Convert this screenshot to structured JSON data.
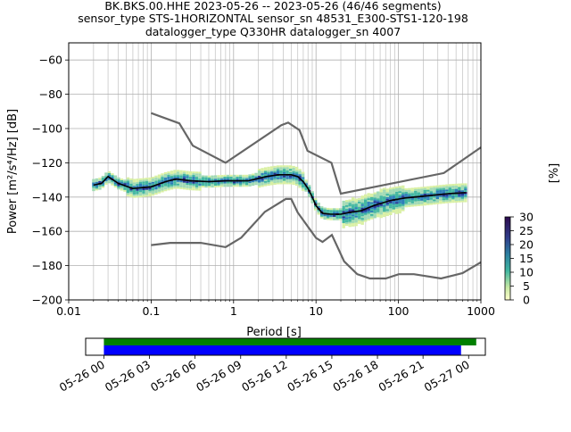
{
  "title": {
    "line1": "BK.BKS.00.HHE   2023-05-26 -- 2023-05-26  (46/46 segments)",
    "line2": "sensor_type STS-1HORIZONTAL sensor_sn 48531_E300-STS1-120-198",
    "line3": "datalogger_type Q330HR datalogger_sn 4007"
  },
  "colors": {
    "noise_models": "#666666",
    "mean": "#000000",
    "coverage_green": "#008000",
    "coverage_blue": "#0000ff",
    "colormap_low": "#ffffcc",
    "colormap_mid": "#41b6a0",
    "colormap_high": "#2d0b4e"
  },
  "chart_data": [
    {
      "type": "heatmap",
      "description_kind": "probabilistic power spectral density",
      "xlabel": "Period [s]",
      "ylabel": "Power [m²/s⁴/Hz] [dB]",
      "xscale": "log",
      "xlim": [
        0.01,
        1000
      ],
      "ylim": [
        -200,
        -50
      ],
      "x_ticks": [
        0.01,
        0.1,
        1,
        10,
        100,
        1000
      ],
      "x_tick_labels": [
        "0.01",
        "0.1",
        "1",
        "10",
        "100",
        "1000"
      ],
      "y_ticks": [
        -200,
        -180,
        -160,
        -140,
        -120,
        -100,
        -80,
        -60
      ],
      "y_tick_labels": [
        "−200",
        "−180",
        "−160",
        "−140",
        "−120",
        "−100",
        "−80",
        "−60"
      ],
      "grid": true,
      "colorbar": {
        "label": "[%]",
        "range": [
          0,
          30
        ],
        "ticks": [
          0,
          5,
          10,
          15,
          20,
          25,
          30
        ],
        "tick_labels": [
          "0",
          "5",
          "10",
          "15",
          "20",
          "25",
          "30"
        ]
      },
      "series": [
        {
          "role": "high-noise-model",
          "points": [
            [
              0.1,
              -91
            ],
            [
              0.22,
              -97
            ],
            [
              0.32,
              -110
            ],
            [
              0.8,
              -120
            ],
            [
              3.8,
              -98
            ],
            [
              4.6,
              -96.5
            ],
            [
              6.3,
              -101
            ],
            [
              7.9,
              -113
            ],
            [
              15.4,
              -120
            ],
            [
              20,
              -138
            ],
            [
              354.8,
              -126
            ],
            [
              1000,
              -111
            ]
          ]
        },
        {
          "role": "low-noise-model",
          "points": [
            [
              0.1,
              -168
            ],
            [
              0.17,
              -166.7
            ],
            [
              0.4,
              -166.7
            ],
            [
              0.8,
              -169.2
            ],
            [
              1.24,
              -163.7
            ],
            [
              2.4,
              -148.6
            ],
            [
              4.3,
              -141.1
            ],
            [
              5,
              -141.1
            ],
            [
              6,
              -149
            ],
            [
              10,
              -163.8
            ],
            [
              12,
              -166.2
            ],
            [
              15.6,
              -162.1
            ],
            [
              21.9,
              -177.5
            ],
            [
              31.6,
              -185
            ],
            [
              45,
              -187.5
            ],
            [
              70,
              -187.5
            ],
            [
              101,
              -185
            ],
            [
              154,
              -185
            ],
            [
              328,
              -187.5
            ],
            [
              600,
              -184.4
            ],
            [
              1000,
              -178
            ]
          ]
        },
        {
          "role": "mean-psd",
          "points": [
            [
              0.02,
              -133
            ],
            [
              0.025,
              -132
            ],
            [
              0.03,
              -128
            ],
            [
              0.04,
              -132
            ],
            [
              0.06,
              -135
            ],
            [
              0.1,
              -134
            ],
            [
              0.15,
              -131
            ],
            [
              0.2,
              -129.5
            ],
            [
              0.3,
              -130.5
            ],
            [
              0.5,
              -131
            ],
            [
              0.8,
              -130.5
            ],
            [
              1.5,
              -130.5
            ],
            [
              2.5,
              -128
            ],
            [
              3.5,
              -127
            ],
            [
              5,
              -127
            ],
            [
              6,
              -128
            ],
            [
              7,
              -131
            ],
            [
              8,
              -135
            ],
            [
              9,
              -140
            ],
            [
              10,
              -145
            ],
            [
              12,
              -149.5
            ],
            [
              15,
              -150
            ],
            [
              20,
              -150
            ],
            [
              25,
              -149
            ],
            [
              35,
              -148
            ],
            [
              50,
              -145
            ],
            [
              80,
              -142
            ],
            [
              120,
              -140.5
            ],
            [
              200,
              -139.5
            ],
            [
              400,
              -138
            ],
            [
              600,
              -137.5
            ],
            [
              650,
              -137.5
            ]
          ]
        }
      ]
    },
    {
      "type": "bar",
      "description_kind": "data coverage timeline",
      "x_tick_labels": [
        "05-26 00",
        "05-26 03",
        "05-26 06",
        "05-26 09",
        "05-26 12",
        "05-26 15",
        "05-26 18",
        "05-26 21",
        "05-27 00"
      ],
      "xlim_hours": [
        -1.2,
        25.1
      ],
      "series": [
        {
          "role": "data-available",
          "start_hour": 0,
          "end_hour": 24.5
        },
        {
          "role": "psd-segments-used",
          "start_hour": 0,
          "end_hour": 23.5
        }
      ]
    }
  ]
}
